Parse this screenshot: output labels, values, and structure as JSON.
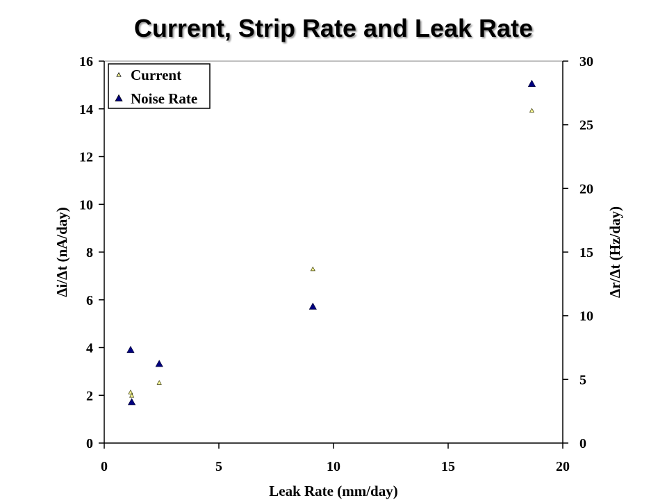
{
  "chart_data": {
    "type": "scatter",
    "title": "Current, Strip Rate and Leak Rate",
    "xlabel": "Leak Rate (mm/day)",
    "ylabel_left": "Δi/Δt (nA/day)",
    "ylabel_right": "Δr/Δt (Hz/day)",
    "xlim": [
      0,
      20
    ],
    "ylim_left": [
      0,
      16
    ],
    "ylim_right": [
      0,
      30
    ],
    "x_ticks": [
      "0",
      "5",
      "10",
      "15",
      "20"
    ],
    "y_left_ticks": [
      "0",
      "2",
      "4",
      "6",
      "8",
      "10",
      "12",
      "14",
      "16"
    ],
    "y_right_ticks": [
      "0",
      "5",
      "10",
      "15",
      "20",
      "25",
      "30"
    ],
    "grid": false,
    "legend_position": "top-left",
    "series": [
      {
        "name": "Current",
        "axis": "left",
        "color": "#ffff99",
        "points": [
          {
            "x": 1.15,
            "y": 2.12
          },
          {
            "x": 1.2,
            "y": 1.98
          },
          {
            "x": 2.4,
            "y": 2.52
          },
          {
            "x": 9.1,
            "y": 7.28
          },
          {
            "x": 18.65,
            "y": 13.92
          }
        ]
      },
      {
        "name": "Noise Rate",
        "axis": "right",
        "color": "#000080",
        "points": [
          {
            "x": 1.15,
            "y": 7.3
          },
          {
            "x": 1.2,
            "y": 3.2
          },
          {
            "x": 2.4,
            "y": 6.2
          },
          {
            "x": 9.1,
            "y": 10.7
          },
          {
            "x": 18.65,
            "y": 28.2
          }
        ]
      }
    ]
  }
}
